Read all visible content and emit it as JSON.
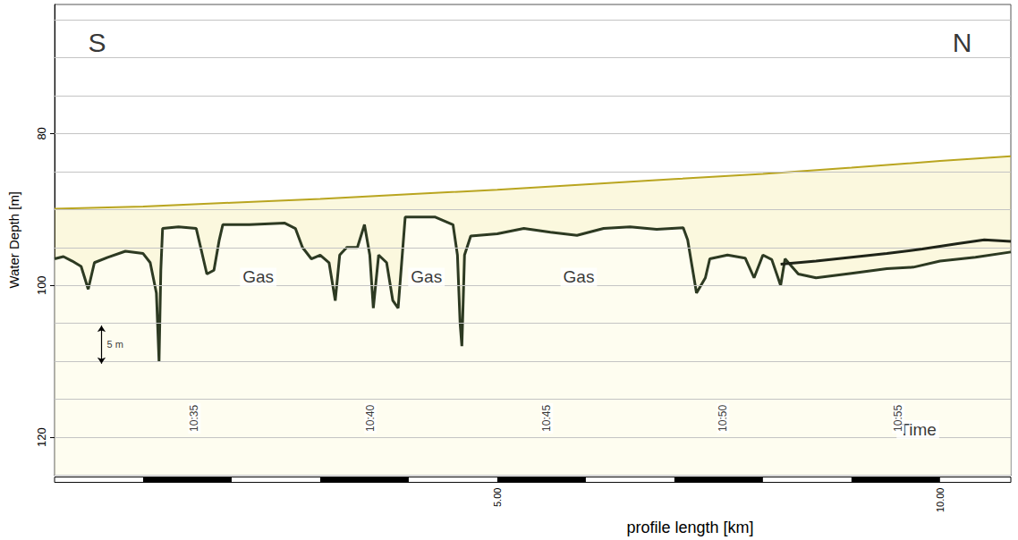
{
  "chart_data": {
    "type": "line",
    "x_label": "profile length [km]",
    "y_label": "Water Depth [m]",
    "xlim": [
      0,
      10.8
    ],
    "xticks": [
      {
        "value": 5,
        "label": "5.00"
      },
      {
        "value": 10,
        "label": "10.00"
      }
    ],
    "ylim": [
      125,
      63
    ],
    "yticks": [
      80,
      100,
      120
    ],
    "grid": true,
    "series": [
      {
        "color": "#b9a520",
        "x": [
          0,
          1,
          2,
          3,
          4,
          5,
          6,
          7,
          8,
          9,
          10,
          10.8
        ],
        "values": [
          89.9,
          89.6,
          89.1,
          88.6,
          88.0,
          87.4,
          86.7,
          86.0,
          85.3,
          84.5,
          83.6,
          83.0
        ]
      },
      {
        "color": "#2d3a22",
        "x": [
          0,
          0.1,
          0.2,
          0.3,
          0.38,
          0.45,
          0.6,
          0.8,
          1.0,
          1.08,
          1.15,
          1.18,
          1.2,
          1.22,
          1.4,
          1.6,
          1.65,
          1.72,
          1.8,
          1.86,
          1.9,
          2.2,
          2.6,
          2.72,
          2.8,
          2.9,
          3.0,
          3.1,
          3.17,
          3.22,
          3.3,
          3.42,
          3.5,
          3.56,
          3.6,
          3.66,
          3.75,
          3.82,
          3.88,
          3.92,
          3.96,
          4.3,
          4.5,
          4.55,
          4.58,
          4.6,
          4.63,
          4.7,
          5.0,
          5.3,
          5.6,
          5.9,
          6.2,
          6.5,
          6.8,
          7.1,
          7.15,
          7.2,
          7.25,
          7.35,
          7.4,
          7.6,
          7.8,
          7.9,
          8.0,
          8.1,
          8.2,
          8.25,
          8.4,
          8.6,
          9.0,
          9.4,
          9.7,
          10.0,
          10.4,
          10.8
        ],
        "values": [
          96.5,
          96.2,
          96.8,
          97.5,
          100.5,
          97,
          96.3,
          95.5,
          95.8,
          97,
          101,
          110,
          98,
          92.5,
          92.3,
          92.5,
          95,
          98.5,
          98,
          94,
          92,
          92,
          91.8,
          92.5,
          95,
          96.5,
          96,
          97,
          102,
          96,
          95,
          95,
          92,
          96,
          103,
          96,
          97,
          102,
          103,
          97,
          91,
          91,
          92,
          96,
          105,
          108,
          96,
          93.5,
          93.2,
          92.5,
          93,
          93.4,
          92.5,
          92.3,
          92.6,
          92.4,
          94,
          97.5,
          101,
          99,
          96.5,
          96,
          96.4,
          99,
          96,
          96.6,
          100,
          96.5,
          98.5,
          99,
          98.4,
          97.8,
          97.6,
          96.8,
          96.3,
          95.6
        ]
      },
      {
        "color": "#1f2418",
        "x": [
          8.2,
          8.6,
          9.0,
          9.4,
          9.8,
          10.2,
          10.5,
          10.8
        ],
        "values": [
          97.2,
          96.8,
          96.3,
          95.8,
          95.2,
          94.5,
          94.0,
          94.2
        ]
      }
    ],
    "annotations": [
      {
        "text": "S",
        "x": 0.48,
        "y": 68
      },
      {
        "text": "N",
        "x": 10.25,
        "y": 68
      },
      {
        "text": "Gas",
        "x": 2.3,
        "y": 98.9
      },
      {
        "text": "Gas",
        "x": 4.2,
        "y": 98.9
      },
      {
        "text": "Gas",
        "x": 5.92,
        "y": 98.9
      },
      {
        "text": "Time",
        "x": 9.75,
        "y": 119
      }
    ],
    "time_labels": {
      "x": [
        1.58,
        3.57,
        5.56,
        7.55,
        9.53
      ],
      "y": 117.5,
      "labels": [
        "10:35",
        "10:40",
        "10:45",
        "10:50",
        "10:55"
      ]
    },
    "scale_bar": {
      "label": "5 m",
      "x": 0.53,
      "y": [
        105.3,
        110.3
      ]
    }
  }
}
